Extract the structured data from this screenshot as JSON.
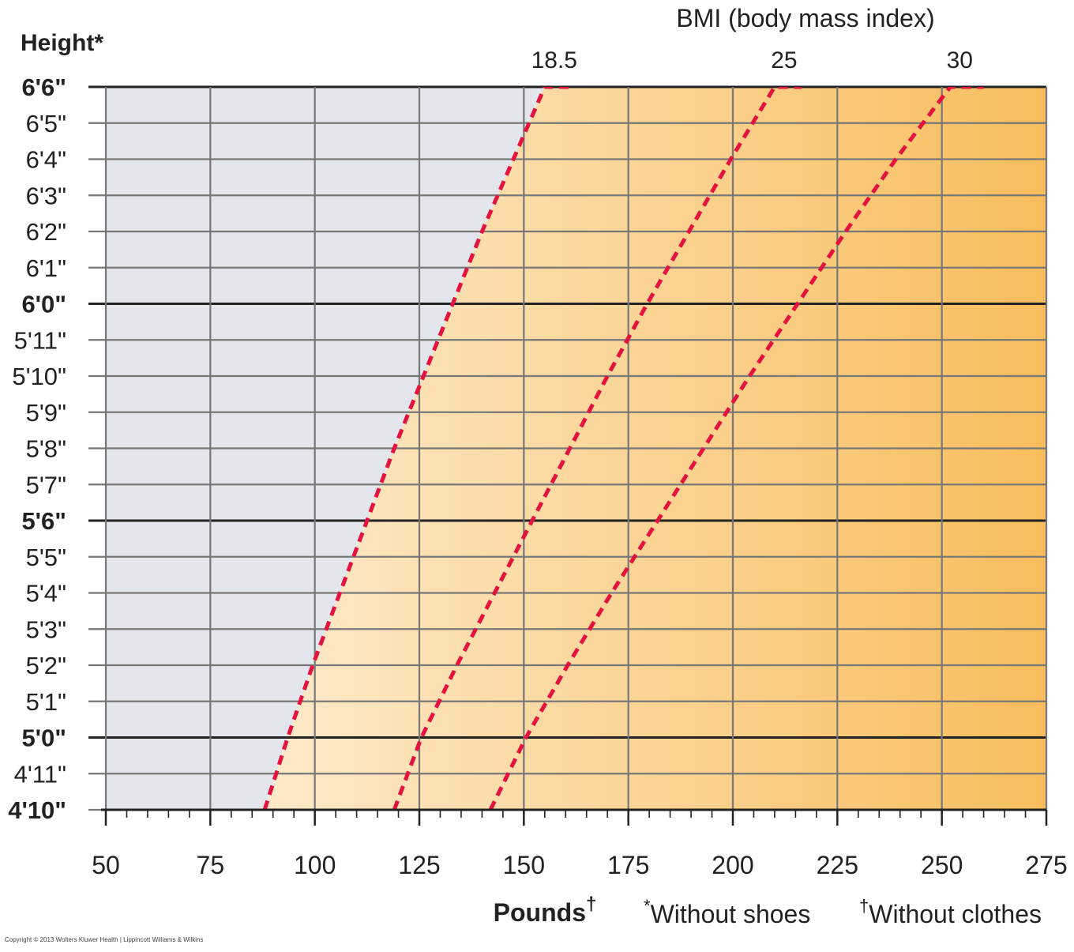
{
  "chart_data": {
    "type": "line",
    "title": "BMI (body mass index)",
    "xlabel": "Pounds",
    "xlabel_mark": "†",
    "ylabel": "Height*",
    "xlim": [
      50,
      275
    ],
    "x_ticks": [
      50,
      75,
      100,
      125,
      150,
      175,
      200,
      225,
      250,
      275
    ],
    "x_minor_step": 5,
    "y_ticks_inches": [
      58,
      59,
      60,
      61,
      62,
      63,
      64,
      65,
      66,
      67,
      68,
      69,
      70,
      71,
      72,
      73,
      74,
      75,
      76,
      77,
      78
    ],
    "y_tick_labels": [
      "4'10\"",
      "4'11\"",
      "5'0\"",
      "5'1\"",
      "5'2\"",
      "5'3\"",
      "5'4\"",
      "5'5\"",
      "5'6\"",
      "5'7\"",
      "5'8\"",
      "5'9\"",
      "5'10\"",
      "5'11\"",
      "6'0\"",
      "6'1\"",
      "6'2\"",
      "6'3\"",
      "6'4\"",
      "6'5\"",
      "6'6\""
    ],
    "y_bold_ticks": [
      "4'10\"",
      "5'0\"",
      "5'6\"",
      "6'0\"",
      "6'6\""
    ],
    "y_emphasized_ticks": [
      "5'0\"",
      "5'6\"",
      "6'0\"",
      "6'6\""
    ],
    "ylim_inches": [
      58,
      78
    ],
    "grid": true,
    "series": [
      {
        "name": "18.5",
        "x": [
          88,
          93.5,
          99.5,
          106,
          112.5,
          119,
          126,
          133,
          140,
          147.5,
          155,
          161
        ],
        "y": [
          58,
          60,
          62,
          64,
          66,
          68,
          70,
          72,
          74,
          76,
          78,
          78
        ]
      },
      {
        "name": "25",
        "x": [
          119,
          125.5,
          134,
          143,
          152,
          161,
          170,
          179.5,
          189.5,
          199.5,
          210,
          216.5
        ],
        "y": [
          58,
          60,
          62,
          64,
          66,
          68,
          70,
          72,
          74,
          76,
          78,
          78
        ]
      },
      {
        "name": "30",
        "x": [
          142,
          150.5,
          160.5,
          171,
          182,
          193,
          204,
          215.5,
          227,
          239,
          252,
          260
        ],
        "y": [
          58,
          60,
          62,
          64,
          66,
          68,
          70,
          72,
          74,
          76,
          78,
          78
        ]
      }
    ],
    "regions": [
      {
        "name": "underweight",
        "color": "#e3e6ec"
      },
      {
        "name": "healthy-to-obese",
        "color_start": "#fff3e0",
        "color_end": "#f8bd5d"
      }
    ],
    "line_color": "#e3123f",
    "footnotes": [
      "Without shoes",
      "Without clothes"
    ],
    "footnote_marks": [
      "*",
      "†"
    ],
    "copyright": "Copyright © 2013 Wolters Kluwer Health | Lippincott Williams & Wilkins"
  }
}
